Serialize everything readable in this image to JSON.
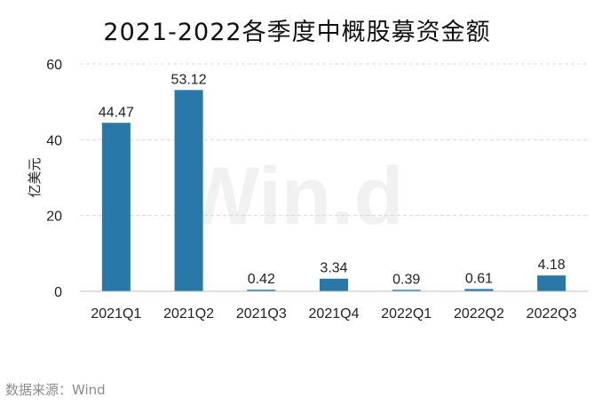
{
  "source_note": "数据来源：Wind",
  "watermark": "Win.d",
  "colors": {
    "bar": "#2878a8",
    "grid": "#d9d9d9",
    "axis": "#bfbfbf"
  },
  "chart_data": {
    "type": "bar",
    "title": "2021-2022各季度中概股募资金额",
    "ylabel": "亿美元",
    "xlabel": "",
    "categories": [
      "2021Q1",
      "2021Q2",
      "2021Q3",
      "2021Q4",
      "2022Q1",
      "2022Q2",
      "2022Q3"
    ],
    "values": [
      44.47,
      53.12,
      0.42,
      3.34,
      0.39,
      0.61,
      4.18
    ],
    "data_labels": [
      "44.47",
      "53.12",
      "0.42",
      "3.34",
      "0.39",
      "0.61",
      "4.18"
    ],
    "ylim": [
      0,
      60
    ],
    "yticks": [
      0,
      20,
      40,
      60
    ],
    "grid": true,
    "grid_style": "dashed"
  }
}
